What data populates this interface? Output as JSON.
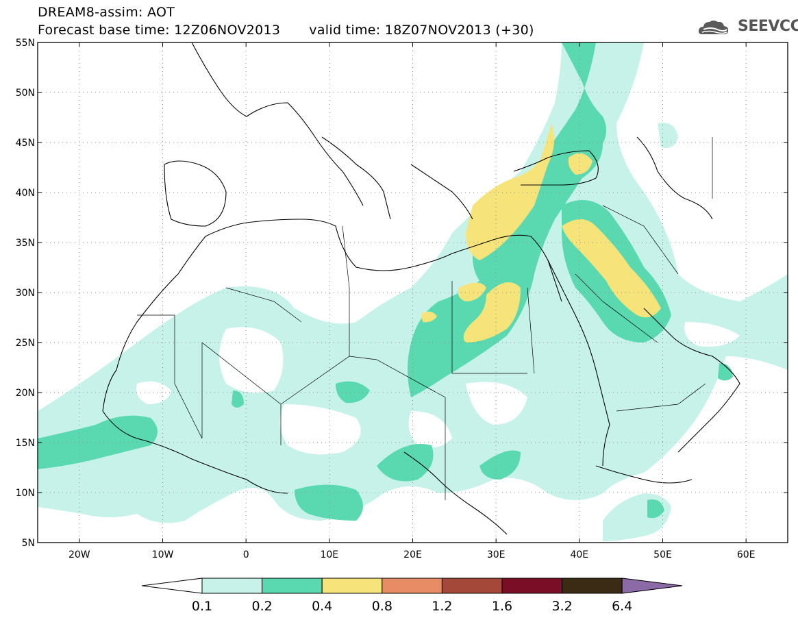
{
  "header": {
    "line1": "DREAM8-assim: AOT",
    "forecast_base": "Forecast base time: 12Z06NOV2013",
    "valid_time": "valid time: 18Z07NOV2013 (+30)"
  },
  "logo": {
    "text": "SEEVCCC",
    "icon": "cloud-icon"
  },
  "map": {
    "lon_range": [
      -25,
      65
    ],
    "lat_range": [
      5,
      55
    ],
    "lat_labels": [
      "55N",
      "50N",
      "45N",
      "40N",
      "35N",
      "30N",
      "25N",
      "20N",
      "15N",
      "10N",
      "5N"
    ],
    "lon_labels": [
      "20W",
      "10W",
      "0",
      "10E",
      "20E",
      "30E",
      "40E",
      "50E",
      "60E"
    ],
    "grid": "dotted"
  },
  "colorbar": {
    "levels": [
      "0.1",
      "0.2",
      "0.4",
      "0.8",
      "1.2",
      "1.6",
      "3.2",
      "6.4"
    ],
    "colors": [
      "#ffffff",
      "#c6f2ea",
      "#5ad9b0",
      "#f6e47a",
      "#e88c66",
      "#a4493a",
      "#7a0e27",
      "#3b2a14",
      "#8c6aa6"
    ]
  }
}
